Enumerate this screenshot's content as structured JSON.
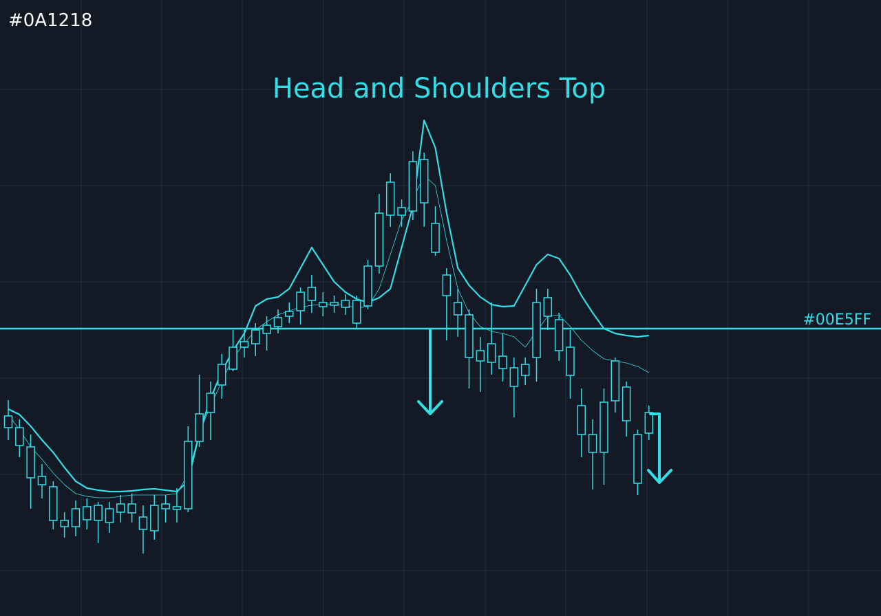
{
  "chart_data": {
    "type": "candlestick",
    "corner_label": "#0A1218",
    "title": "Head and Shoulders Top",
    "neckline": {
      "value": 418,
      "label": "#00E5FF"
    },
    "color": "#35dde6",
    "xlim": [
      -0.735,
      77.65
    ],
    "ylim": [
      0,
      896
    ],
    "x": [
      0,
      1,
      2,
      3,
      4,
      5,
      6,
      7,
      8,
      9,
      10,
      11,
      12,
      13,
      14,
      15,
      16,
      17,
      18,
      19,
      20,
      21,
      22,
      23,
      24,
      25,
      26,
      27,
      28,
      29,
      30,
      31,
      32,
      33,
      34,
      35,
      36,
      37,
      38,
      39,
      40,
      41,
      42,
      43,
      44,
      45,
      46,
      47,
      48,
      49,
      50,
      51,
      52,
      53,
      54,
      55,
      56,
      57
    ],
    "open": [
      274,
      248,
      201,
      191,
      139,
      130,
      130,
      140,
      139,
      136,
      151,
      150,
      126,
      124,
      156,
      155,
      156,
      254,
      296,
      336,
      359,
      391,
      396,
      411,
      421,
      436,
      444,
      459,
      450,
      452,
      449,
      426,
      451,
      509,
      583,
      583,
      589,
      601,
      529,
      466,
      438,
      376,
      371,
      369,
      360,
      334,
      350,
      376,
      436,
      386,
      350,
      264,
      238,
      238,
      313,
      284,
      193,
      266
    ],
    "close": [
      291,
      274,
      246,
      203,
      188,
      139,
      156,
      159,
      161,
      156,
      163,
      163,
      144,
      161,
      163,
      159,
      254,
      294,
      324,
      366,
      391,
      399,
      416,
      423,
      434,
      443,
      471,
      478,
      456,
      456,
      459,
      459,
      509,
      586,
      631,
      594,
      661,
      664,
      571,
      496,
      456,
      438,
      386,
      396,
      378,
      361,
      366,
      456,
      463,
      431,
      391,
      306,
      264,
      311,
      371,
      333,
      264,
      296
    ],
    "high": [
      314,
      286,
      264,
      221,
      196,
      151,
      168,
      171,
      166,
      166,
      176,
      178,
      161,
      176,
      176,
      186,
      276,
      351,
      341,
      381,
      416,
      416,
      426,
      436,
      446,
      456,
      478,
      496,
      471,
      466,
      468,
      466,
      518,
      614,
      644,
      606,
      676,
      674,
      596,
      506,
      476,
      446,
      406,
      456,
      411,
      376,
      376,
      476,
      476,
      441,
      416,
      331,
      286,
      331,
      376,
      341,
      271,
      306
    ],
    "low": [
      256,
      231,
      156,
      171,
      126,
      114,
      116,
      126,
      106,
      121,
      136,
      136,
      91,
      111,
      136,
      136,
      151,
      246,
      256,
      316,
      356,
      376,
      378,
      386,
      411,
      426,
      424,
      441,
      436,
      441,
      438,
      418,
      446,
      498,
      566,
      566,
      576,
      566,
      524,
      401,
      406,
      331,
      326,
      351,
      341,
      289,
      336,
      341,
      416,
      371,
      316,
      231,
      184,
      191,
      296,
      261,
      176,
      256
    ],
    "series": [
      {
        "values": [
          301,
          293,
          276,
          256,
          238,
          216,
          196,
          186,
          183,
          181,
          181,
          182,
          184,
          185,
          183,
          181,
          196,
          266,
          316,
          356,
          386,
          411,
          451,
          461,
          464,
          476,
          506,
          536,
          511,
          486,
          471,
          461,
          456,
          463,
          476,
          536,
          596,
          721,
          681,
          586,
          506,
          481,
          464,
          453,
          450,
          451,
          481,
          511,
          526,
          520,
          496,
          466,
          441,
          418,
          411,
          408,
          406,
          408
        ]
      },
      {
        "values": [
          293,
          271,
          246,
          228,
          208,
          191,
          178,
          174,
          172,
          172,
          174,
          176,
          176,
          176,
          176,
          178,
          206,
          266,
          306,
          341,
          376,
          396,
          416,
          428,
          438,
          444,
          449,
          452,
          453,
          453,
          452,
          448,
          450,
          476,
          526,
          576,
          606,
          641,
          626,
          546,
          476,
          441,
          421,
          414,
          411,
          406,
          391,
          414,
          436,
          438,
          421,
          401,
          386,
          374,
          371,
          368,
          363,
          354
        ]
      }
    ]
  }
}
